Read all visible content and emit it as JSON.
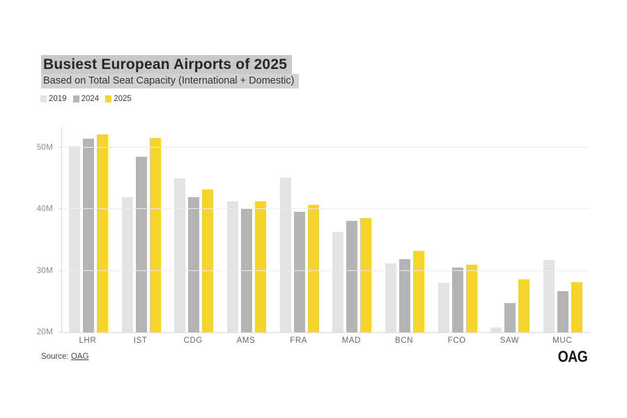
{
  "header": {
    "title_highlight": "#C9C9C9",
    "subtitle_highlight": "#D2D2D2"
  },
  "chart_data": {
    "type": "bar",
    "title": "Busiest European Airports of 2025",
    "subtitle": "Based on Total Seat Capacity (International + Domestic)",
    "categories": [
      "LHR",
      "IST",
      "CDG",
      "AMS",
      "FRA",
      "MAD",
      "BCN",
      "FCO",
      "SAW",
      "MUC"
    ],
    "series": [
      {
        "name": "2019",
        "color": "#E3E3E3",
        "values": [
          50.2,
          42.0,
          45.0,
          41.3,
          45.1,
          36.3,
          31.2,
          28.0,
          20.8,
          31.8
        ]
      },
      {
        "name": "2024",
        "color": "#B4B4B4",
        "values": [
          51.5,
          48.5,
          42.0,
          40.0,
          39.6,
          38.1,
          31.9,
          30.5,
          24.8,
          26.7
        ]
      },
      {
        "name": "2025",
        "color": "#F6D42E",
        "values": [
          52.2,
          51.6,
          43.2,
          41.3,
          40.7,
          38.6,
          33.3,
          31.0,
          28.6,
          28.2
        ]
      }
    ],
    "unit": "M seats",
    "xlabel": "",
    "ylabel": "",
    "ylim": [
      20,
      53.4
    ],
    "yticks": [
      20,
      30,
      40,
      50
    ],
    "ytick_labels": [
      "20M",
      "30M",
      "40M",
      "50M"
    ],
    "gridline_values": [
      30,
      40,
      50
    ],
    "grid": true,
    "legend_position": "top-left"
  },
  "footer": {
    "source_prefix": "Source:",
    "source_link_text": "OAG",
    "brand_logo_text": "OAG"
  },
  "colors": {
    "background": "#FFFFFF",
    "grid_line": "#ECECEC",
    "axis_line": "#DBDBDB",
    "ytick_label": "#8C8C8C",
    "xtick_label": "#666666",
    "title_text": "#262626",
    "subtitle_text": "#333333"
  }
}
